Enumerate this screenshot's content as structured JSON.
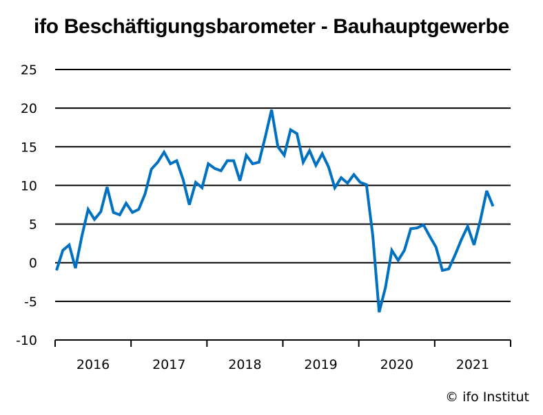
{
  "chart_data": {
    "type": "line",
    "title": "ifo Beschäftigungsbarometer - Bauhauptgewerbe",
    "xlabel": "",
    "ylabel": "",
    "ylim": [
      -10,
      25
    ],
    "yticks": [
      25,
      20,
      15,
      10,
      5,
      0,
      -5,
      -10
    ],
    "ytick_labels": [
      "25",
      "20",
      "15",
      "10",
      "5",
      "0",
      "-5",
      "-10"
    ],
    "xtick_labels": [
      "2016",
      "2017",
      "2018",
      "2019",
      "2020",
      "2021"
    ],
    "grid": "horizontal",
    "legend": null,
    "x_start": "2016-01",
    "x_end": "2021-10",
    "frequency": "monthly",
    "series": [
      {
        "name": "Bauhauptgewerbe",
        "color": "#0070C0",
        "values": [
          -1.0,
          1.6,
          2.3,
          -0.7,
          3.4,
          6.9,
          5.6,
          6.6,
          9.8,
          6.5,
          6.2,
          7.7,
          6.5,
          6.9,
          8.9,
          12.1,
          13.0,
          14.3,
          12.8,
          13.2,
          10.8,
          7.5,
          10.4,
          9.7,
          12.8,
          12.2,
          11.9,
          13.2,
          13.2,
          10.6,
          13.9,
          12.8,
          13.0,
          16.3,
          19.8,
          15.0,
          13.9,
          17.2,
          16.7,
          13.0,
          14.5,
          12.6,
          14.1,
          12.4,
          9.7,
          11.0,
          10.3,
          11.4,
          10.4,
          10.1,
          3.5,
          -6.4,
          -3.2,
          1.6,
          0.3,
          1.6,
          4.4,
          4.5,
          4.9,
          3.4,
          2.0,
          -1.0,
          -0.8,
          1.0,
          3.0,
          4.7,
          2.3,
          5.5,
          9.3,
          7.3
        ]
      }
    ]
  },
  "credit": "© ifo Institut"
}
